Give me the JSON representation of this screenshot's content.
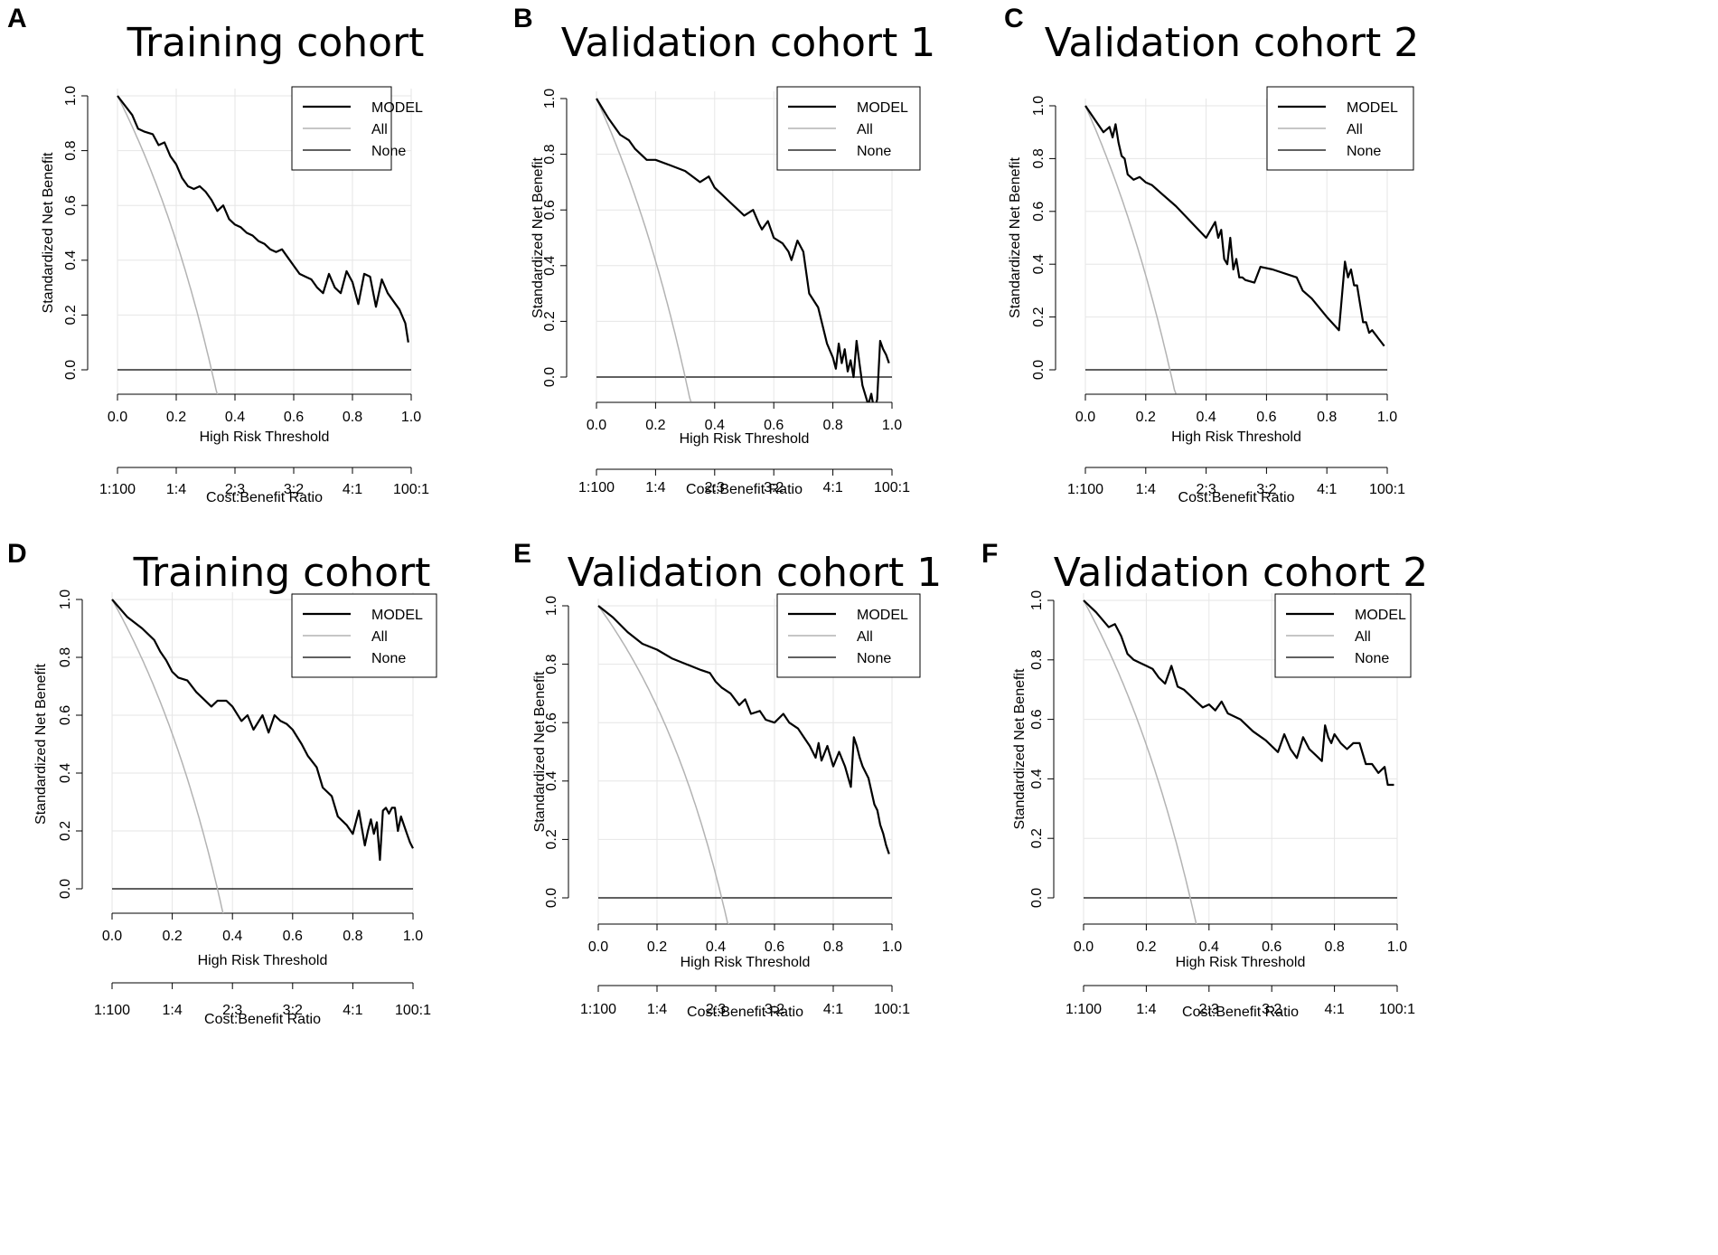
{
  "figure": {
    "description_labels": [
      "A",
      "B",
      "C",
      "D",
      "E",
      "F"
    ]
  },
  "chart_data": [
    {
      "panel": "A",
      "type": "line",
      "title": "Training cohort",
      "xlabel": "High Risk Threshold",
      "ylabel": "Standardized Net Benefit",
      "xlim": [
        0,
        1
      ],
      "ylim": [
        -0.09,
        1.03
      ],
      "xticks": [
        "0.0",
        "0.2",
        "0.4",
        "0.6",
        "0.8",
        "1.0"
      ],
      "yticks": [
        "0.0",
        "0.2",
        "0.4",
        "0.6",
        "0.8",
        "1.0"
      ],
      "cost_benefit_label": "Cost:Benefit Ratio",
      "cost_benefit_ticks": [
        "1:100",
        "1:4",
        "2:3",
        "3:2",
        "4:1",
        "100:1"
      ],
      "legend": [
        "MODEL",
        "All",
        "None"
      ],
      "series": [
        {
          "name": "MODEL",
          "x": [
            0,
            0.05,
            0.07,
            0.09,
            0.12,
            0.14,
            0.16,
            0.18,
            0.2,
            0.22,
            0.24,
            0.26,
            0.28,
            0.3,
            0.32,
            0.34,
            0.36,
            0.38,
            0.4,
            0.42,
            0.44,
            0.46,
            0.48,
            0.5,
            0.52,
            0.54,
            0.56,
            0.58,
            0.6,
            0.62,
            0.64,
            0.66,
            0.68,
            0.7,
            0.72,
            0.74,
            0.76,
            0.78,
            0.8,
            0.82,
            0.84,
            0.86,
            0.88,
            0.9,
            0.92,
            0.94,
            0.96,
            0.98,
            0.99
          ],
          "values": [
            1.0,
            0.93,
            0.88,
            0.87,
            0.86,
            0.82,
            0.83,
            0.78,
            0.75,
            0.7,
            0.67,
            0.66,
            0.67,
            0.65,
            0.62,
            0.58,
            0.6,
            0.55,
            0.53,
            0.52,
            0.5,
            0.49,
            0.47,
            0.46,
            0.44,
            0.43,
            0.44,
            0.41,
            0.38,
            0.35,
            0.34,
            0.33,
            0.3,
            0.28,
            0.35,
            0.3,
            0.28,
            0.36,
            0.32,
            0.24,
            0.35,
            0.34,
            0.23,
            0.33,
            0.28,
            0.25,
            0.22,
            0.17,
            0.1
          ]
        },
        {
          "name": "All",
          "prevalence": 0.32
        },
        {
          "name": "None",
          "values": [
            0,
            0
          ]
        }
      ]
    },
    {
      "panel": "B",
      "type": "line",
      "title": "Validation cohort 1",
      "xlabel": "High Risk Threshold",
      "ylabel": "Standardized Net Benefit",
      "xlim": [
        0,
        1
      ],
      "ylim": [
        -0.09,
        1.03
      ],
      "xticks": [
        "0.0",
        "0.2",
        "0.4",
        "0.6",
        "0.8",
        "1.0"
      ],
      "yticks": [
        "0.0",
        "0.2",
        "0.4",
        "0.6",
        "0.8",
        "1.0"
      ],
      "cost_benefit_label": "Cost:Benefit Ratio",
      "cost_benefit_ticks": [
        "1:100",
        "1:4",
        "2:3",
        "3:2",
        "4:1",
        "100:1"
      ],
      "legend": [
        "MODEL",
        "All",
        "None"
      ],
      "series": [
        {
          "name": "MODEL",
          "x": [
            0,
            0.04,
            0.08,
            0.11,
            0.13,
            0.15,
            0.17,
            0.2,
            0.25,
            0.3,
            0.35,
            0.38,
            0.4,
            0.42,
            0.45,
            0.5,
            0.53,
            0.55,
            0.56,
            0.58,
            0.6,
            0.63,
            0.65,
            0.66,
            0.68,
            0.7,
            0.72,
            0.75,
            0.78,
            0.8,
            0.81,
            0.82,
            0.83,
            0.84,
            0.85,
            0.86,
            0.87,
            0.88,
            0.89,
            0.9,
            0.92,
            0.93,
            0.94,
            0.95,
            0.96,
            0.97,
            0.98,
            0.99
          ],
          "values": [
            1.0,
            0.93,
            0.87,
            0.85,
            0.82,
            0.8,
            0.78,
            0.78,
            0.76,
            0.74,
            0.7,
            0.72,
            0.68,
            0.66,
            0.63,
            0.58,
            0.6,
            0.55,
            0.53,
            0.56,
            0.5,
            0.48,
            0.45,
            0.42,
            0.49,
            0.45,
            0.3,
            0.25,
            0.12,
            0.07,
            0.03,
            0.12,
            0.05,
            0.1,
            0.02,
            0.06,
            0.0,
            0.13,
            0.05,
            -0.03,
            -0.1,
            -0.06,
            -0.12,
            -0.08,
            0.13,
            0.1,
            0.08,
            0.05
          ]
        },
        {
          "name": "All",
          "prevalence": 0.3
        },
        {
          "name": "None",
          "values": [
            0,
            0
          ]
        }
      ]
    },
    {
      "panel": "C",
      "type": "line",
      "title": "Validation cohort 2",
      "xlabel": "High Risk Threshold",
      "ylabel": "Standardized Net Benefit",
      "xlim": [
        0,
        1
      ],
      "ylim": [
        -0.09,
        1.03
      ],
      "xticks": [
        "0.0",
        "0.2",
        "0.4",
        "0.6",
        "0.8",
        "1.0"
      ],
      "yticks": [
        "0.0",
        "0.2",
        "0.4",
        "0.6",
        "0.8",
        "1.0"
      ],
      "cost_benefit_label": "Cost:Benefit Ratio",
      "cost_benefit_ticks": [
        "1:100",
        "1:4",
        "2:3",
        "3:2",
        "4:1",
        "100:1"
      ],
      "legend": [
        "MODEL",
        "All",
        "None"
      ],
      "series": [
        {
          "name": "MODEL",
          "x": [
            0,
            0.03,
            0.06,
            0.08,
            0.09,
            0.1,
            0.11,
            0.12,
            0.13,
            0.14,
            0.16,
            0.18,
            0.2,
            0.22,
            0.25,
            0.3,
            0.35,
            0.4,
            0.43,
            0.44,
            0.45,
            0.46,
            0.47,
            0.48,
            0.49,
            0.5,
            0.51,
            0.52,
            0.53,
            0.56,
            0.58,
            0.62,
            0.7,
            0.72,
            0.75,
            0.8,
            0.84,
            0.86,
            0.87,
            0.88,
            0.89,
            0.9,
            0.91,
            0.92,
            0.93,
            0.94,
            0.95,
            0.97,
            0.99
          ],
          "values": [
            1.0,
            0.95,
            0.9,
            0.92,
            0.88,
            0.93,
            0.86,
            0.81,
            0.8,
            0.74,
            0.72,
            0.73,
            0.71,
            0.7,
            0.67,
            0.62,
            0.56,
            0.5,
            0.56,
            0.5,
            0.53,
            0.42,
            0.4,
            0.5,
            0.38,
            0.42,
            0.35,
            0.35,
            0.34,
            0.33,
            0.39,
            0.38,
            0.35,
            0.3,
            0.27,
            0.2,
            0.15,
            0.41,
            0.35,
            0.38,
            0.32,
            0.32,
            0.25,
            0.18,
            0.18,
            0.14,
            0.15,
            0.12,
            0.09
          ]
        },
        {
          "name": "All",
          "prevalence": 0.28
        },
        {
          "name": "None",
          "values": [
            0,
            0
          ]
        }
      ]
    },
    {
      "panel": "D",
      "type": "line",
      "title": "Training cohort",
      "xlabel": "High Risk Threshold",
      "ylabel": "Standardized Net Benefit",
      "xlim": [
        0,
        1
      ],
      "ylim": [
        -0.09,
        1.03
      ],
      "xticks": [
        "0.0",
        "0.2",
        "0.4",
        "0.6",
        "0.8",
        "1.0"
      ],
      "yticks": [
        "0.0",
        "0.2",
        "0.4",
        "0.6",
        "0.8",
        "1.0"
      ],
      "cost_benefit_label": "Cost:Benefit Ratio",
      "cost_benefit_ticks": [
        "1:100",
        "1:4",
        "2:3",
        "3:2",
        "4:1",
        "100:1"
      ],
      "legend": [
        "MODEL",
        "All",
        "None"
      ],
      "series": [
        {
          "name": "MODEL",
          "x": [
            0,
            0.05,
            0.1,
            0.14,
            0.16,
            0.18,
            0.2,
            0.22,
            0.25,
            0.28,
            0.3,
            0.33,
            0.35,
            0.38,
            0.4,
            0.43,
            0.45,
            0.47,
            0.5,
            0.52,
            0.54,
            0.56,
            0.58,
            0.6,
            0.63,
            0.65,
            0.68,
            0.7,
            0.73,
            0.75,
            0.78,
            0.8,
            0.82,
            0.84,
            0.85,
            0.86,
            0.87,
            0.88,
            0.89,
            0.9,
            0.91,
            0.92,
            0.93,
            0.94,
            0.95,
            0.96,
            0.97,
            0.98,
            0.99,
            1.0
          ],
          "values": [
            1.0,
            0.94,
            0.9,
            0.86,
            0.82,
            0.79,
            0.75,
            0.73,
            0.72,
            0.68,
            0.66,
            0.63,
            0.65,
            0.65,
            0.63,
            0.58,
            0.6,
            0.55,
            0.6,
            0.54,
            0.6,
            0.58,
            0.57,
            0.55,
            0.5,
            0.46,
            0.42,
            0.35,
            0.32,
            0.25,
            0.22,
            0.19,
            0.27,
            0.15,
            0.2,
            0.24,
            0.19,
            0.23,
            0.1,
            0.27,
            0.28,
            0.26,
            0.28,
            0.28,
            0.2,
            0.25,
            0.22,
            0.19,
            0.16,
            0.14
          ]
        },
        {
          "name": "All",
          "prevalence": 0.35
        },
        {
          "name": "None",
          "values": [
            0,
            0
          ]
        }
      ]
    },
    {
      "panel": "E",
      "type": "line",
      "title": "Validation cohort 1",
      "xlabel": "High Risk Threshold",
      "ylabel": "Standardized Net Benefit",
      "xlim": [
        0,
        1
      ],
      "ylim": [
        -0.09,
        1.03
      ],
      "xticks": [
        "0.0",
        "0.2",
        "0.4",
        "0.6",
        "0.8",
        "1.0"
      ],
      "yticks": [
        "0.0",
        "0.2",
        "0.4",
        "0.6",
        "0.8",
        "1.0"
      ],
      "cost_benefit_label": "Cost:Benefit Ratio",
      "cost_benefit_ticks": [
        "1:100",
        "1:4",
        "2:3",
        "3:2",
        "4:1",
        "100:1"
      ],
      "legend": [
        "MODEL",
        "All",
        "None"
      ],
      "series": [
        {
          "name": "MODEL",
          "x": [
            0,
            0.05,
            0.1,
            0.15,
            0.2,
            0.25,
            0.3,
            0.35,
            0.38,
            0.4,
            0.42,
            0.45,
            0.48,
            0.5,
            0.52,
            0.55,
            0.57,
            0.6,
            0.63,
            0.65,
            0.68,
            0.7,
            0.72,
            0.74,
            0.75,
            0.76,
            0.78,
            0.8,
            0.82,
            0.84,
            0.86,
            0.87,
            0.88,
            0.89,
            0.9,
            0.92,
            0.94,
            0.95,
            0.96,
            0.97,
            0.98,
            0.99
          ],
          "values": [
            1.0,
            0.96,
            0.91,
            0.87,
            0.85,
            0.82,
            0.8,
            0.78,
            0.77,
            0.74,
            0.72,
            0.7,
            0.66,
            0.68,
            0.63,
            0.64,
            0.61,
            0.6,
            0.63,
            0.6,
            0.58,
            0.55,
            0.52,
            0.48,
            0.53,
            0.47,
            0.52,
            0.45,
            0.5,
            0.45,
            0.38,
            0.55,
            0.52,
            0.48,
            0.45,
            0.41,
            0.32,
            0.3,
            0.25,
            0.22,
            0.18,
            0.15
          ]
        },
        {
          "name": "All",
          "prevalence": 0.42
        },
        {
          "name": "None",
          "values": [
            0,
            0
          ]
        }
      ]
    },
    {
      "panel": "F",
      "type": "line",
      "title": "Validation cohort 2",
      "xlabel": "High Risk Threshold",
      "ylabel": "Standardized Net Benefit",
      "xlim": [
        0,
        1
      ],
      "ylim": [
        -0.09,
        1.03
      ],
      "xticks": [
        "0.0",
        "0.2",
        "0.4",
        "0.6",
        "0.8",
        "1.0"
      ],
      "yticks": [
        "0.0",
        "0.2",
        "0.4",
        "0.6",
        "0.8",
        "1.0"
      ],
      "cost_benefit_label": "Cost:Benefit Ratio",
      "cost_benefit_ticks": [
        "1:100",
        "1:4",
        "2:3",
        "3:2",
        "4:1",
        "100:1"
      ],
      "legend": [
        "MODEL",
        "All",
        "None"
      ],
      "series": [
        {
          "name": "MODEL",
          "x": [
            0,
            0.04,
            0.08,
            0.1,
            0.12,
            0.14,
            0.16,
            0.18,
            0.2,
            0.22,
            0.24,
            0.26,
            0.28,
            0.3,
            0.32,
            0.34,
            0.36,
            0.38,
            0.4,
            0.42,
            0.44,
            0.46,
            0.5,
            0.54,
            0.58,
            0.62,
            0.64,
            0.66,
            0.68,
            0.7,
            0.72,
            0.74,
            0.76,
            0.77,
            0.78,
            0.79,
            0.8,
            0.82,
            0.84,
            0.86,
            0.88,
            0.9,
            0.92,
            0.94,
            0.96,
            0.97,
            0.98,
            0.99
          ],
          "values": [
            1.0,
            0.96,
            0.91,
            0.92,
            0.88,
            0.82,
            0.8,
            0.79,
            0.78,
            0.77,
            0.74,
            0.72,
            0.78,
            0.71,
            0.7,
            0.68,
            0.66,
            0.64,
            0.65,
            0.63,
            0.66,
            0.62,
            0.6,
            0.56,
            0.53,
            0.49,
            0.55,
            0.5,
            0.47,
            0.54,
            0.5,
            0.48,
            0.46,
            0.58,
            0.54,
            0.52,
            0.55,
            0.52,
            0.5,
            0.52,
            0.52,
            0.45,
            0.45,
            0.42,
            0.44,
            0.38,
            0.38,
            0.38
          ]
        },
        {
          "name": "All",
          "prevalence": 0.34
        },
        {
          "name": "None",
          "values": [
            0,
            0
          ]
        }
      ]
    }
  ]
}
